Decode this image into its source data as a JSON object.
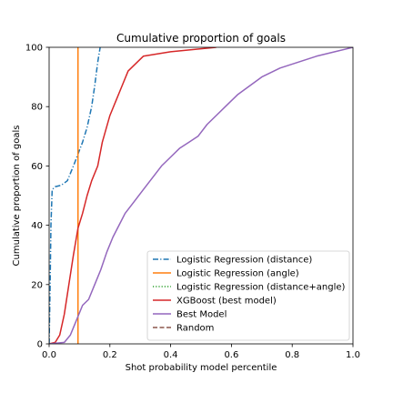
{
  "chart_data": {
    "type": "line",
    "title": "Cumulative proportion of goals",
    "xlabel": "Shot probability model percentile",
    "ylabel": "Cumulative proportion of goals",
    "xlim": [
      0,
      1
    ],
    "ylim": [
      0,
      100
    ],
    "xticks": [
      0.0,
      0.2,
      0.4,
      0.6,
      0.8,
      1.0
    ],
    "xtick_labels": [
      "0.0",
      "0.2",
      "0.4",
      "0.6",
      "0.8",
      "1.0"
    ],
    "yticks": [
      0,
      20,
      40,
      60,
      80,
      100
    ],
    "ytick_labels": [
      "0",
      "20",
      "40",
      "60",
      "80",
      "100"
    ],
    "grid": false,
    "legend_position": "lower-right",
    "series": [
      {
        "name": "Logistic Regression (distance)",
        "color": "#1f77b4",
        "dash": "dashdot",
        "points": [
          [
            0.0,
            0
          ],
          [
            0.003,
            18
          ],
          [
            0.006,
            40
          ],
          [
            0.01,
            52
          ],
          [
            0.02,
            53
          ],
          [
            0.04,
            53.5
          ],
          [
            0.06,
            55
          ],
          [
            0.08,
            60
          ],
          [
            0.095,
            64
          ],
          [
            0.11,
            68
          ],
          [
            0.125,
            73
          ],
          [
            0.14,
            80
          ],
          [
            0.15,
            87
          ],
          [
            0.16,
            95
          ],
          [
            0.168,
            100
          ]
        ]
      },
      {
        "name": "Logistic Regression (angle)",
        "color": "#ff7f0e",
        "dash": "solid",
        "points": [
          [
            0.095,
            0
          ],
          [
            0.095,
            100
          ]
        ]
      },
      {
        "name": "Logistic Regression (distance+angle)",
        "color": "#2ca02c",
        "dash": "dotted",
        "points": []
      },
      {
        "name": "XGBoost (best model)",
        "color": "#d62728",
        "dash": "solid",
        "points": [
          [
            0.0,
            0
          ],
          [
            0.02,
            0.5
          ],
          [
            0.035,
            3
          ],
          [
            0.05,
            10
          ],
          [
            0.065,
            20
          ],
          [
            0.08,
            30
          ],
          [
            0.095,
            39
          ],
          [
            0.11,
            44
          ],
          [
            0.125,
            50
          ],
          [
            0.14,
            55
          ],
          [
            0.16,
            60
          ],
          [
            0.175,
            68
          ],
          [
            0.2,
            77
          ],
          [
            0.22,
            82
          ],
          [
            0.24,
            87
          ],
          [
            0.26,
            92
          ],
          [
            0.28,
            94
          ],
          [
            0.31,
            97
          ],
          [
            0.4,
            98.5
          ],
          [
            0.55,
            100
          ]
        ]
      },
      {
        "name": "Best Model",
        "color": "#9467bd",
        "dash": "solid",
        "points": [
          [
            0.0,
            0
          ],
          [
            0.05,
            0.5
          ],
          [
            0.07,
            3
          ],
          [
            0.09,
            8
          ],
          [
            0.11,
            13
          ],
          [
            0.13,
            15
          ],
          [
            0.15,
            20
          ],
          [
            0.17,
            25
          ],
          [
            0.19,
            31
          ],
          [
            0.21,
            36
          ],
          [
            0.23,
            40
          ],
          [
            0.25,
            44
          ],
          [
            0.28,
            48
          ],
          [
            0.31,
            52
          ],
          [
            0.34,
            56
          ],
          [
            0.37,
            60
          ],
          [
            0.4,
            63
          ],
          [
            0.43,
            66
          ],
          [
            0.46,
            68
          ],
          [
            0.49,
            70
          ],
          [
            0.52,
            74
          ],
          [
            0.55,
            77
          ],
          [
            0.58,
            80
          ],
          [
            0.62,
            84
          ],
          [
            0.66,
            87
          ],
          [
            0.7,
            90
          ],
          [
            0.76,
            93
          ],
          [
            0.82,
            95
          ],
          [
            0.88,
            97
          ],
          [
            0.94,
            98.5
          ],
          [
            1.0,
            100
          ]
        ]
      },
      {
        "name": "Random",
        "color": "#8c564b",
        "dash": "dashed",
        "points": []
      }
    ]
  }
}
